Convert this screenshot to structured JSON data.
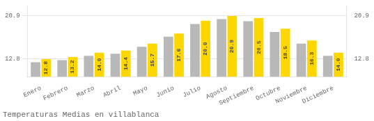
{
  "chart_data": {
    "type": "bar",
    "title": "Temperaturas Medias en villablanca",
    "categories": [
      "Enero",
      "Febrero",
      "Marzo",
      "Abril",
      "Mayo",
      "Junio",
      "Julio",
      "Agosto",
      "Septiembre",
      "Octubre",
      "Noviembre",
      "Diciembre"
    ],
    "series": [
      {
        "color": "#B8B8B8",
        "values": [
          12.2,
          12.6,
          13.4,
          13.8,
          15.1,
          17.0,
          19.4,
          20.3,
          19.9,
          17.9,
          15.7,
          13.4
        ]
      },
      {
        "color": "#FFD700",
        "values": [
          12.8,
          13.2,
          14.0,
          14.4,
          15.7,
          17.6,
          20.0,
          20.9,
          20.5,
          18.5,
          16.3,
          14.0
        ],
        "value_labels": [
          "12.8",
          "13.2",
          "14.0",
          "14.4",
          "15.7",
          "17.6",
          "20.0",
          "20.9",
          "20.5",
          "18.5",
          "16.3",
          "14.0"
        ]
      }
    ],
    "ylim": [
      9.5,
      22.8
    ],
    "yticks": [
      12.8,
      20.9
    ],
    "y2lim": [
      9.5,
      22.8
    ],
    "y2ticks": [
      12.8,
      20.9
    ],
    "grid": true,
    "data_labels": true
  }
}
